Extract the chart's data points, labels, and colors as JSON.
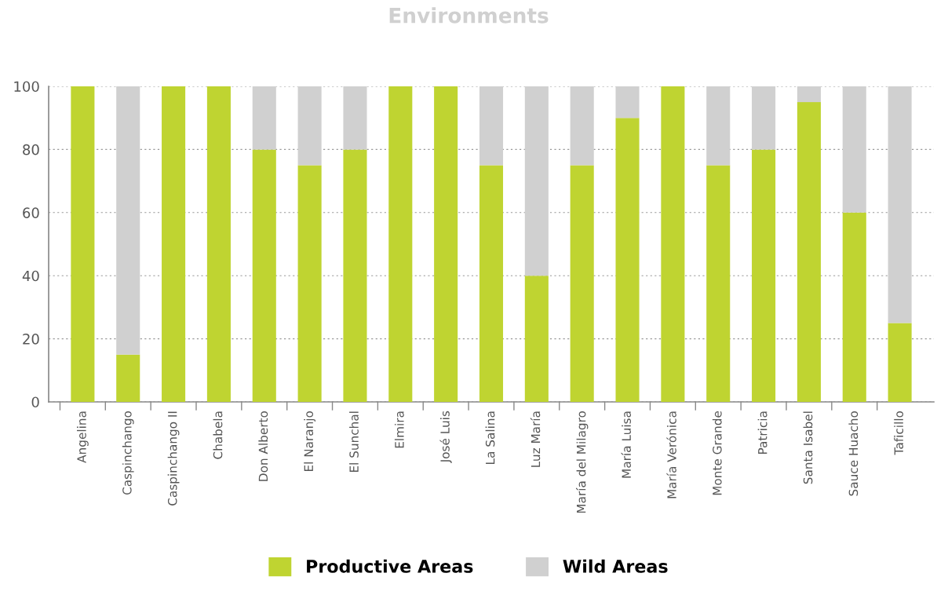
{
  "chart_data": {
    "type": "bar",
    "title": "Environments",
    "stacked": true,
    "categories": [
      "Angelina",
      "Caspinchango",
      "Caspinchango II",
      "Chabela",
      "Don Alberto",
      "El Naranjo",
      "El Sunchal",
      "Elmira",
      "José Luis",
      "La Salina",
      "Luz María",
      "María del Milagro",
      "María Luisa",
      "María Verónica",
      "Monte Grande",
      "Patricia",
      "Santa Isabel",
      "Sauce Huacho",
      "Taficillo"
    ],
    "series": [
      {
        "name": "Productive Areas",
        "color": "#bfd431",
        "values": [
          100,
          15,
          100,
          100,
          80,
          75,
          80,
          100,
          100,
          75,
          40,
          75,
          90,
          100,
          75,
          80,
          95,
          60,
          25
        ]
      },
      {
        "name": "Wild Areas",
        "color": "#d0d0d0",
        "values": [
          0,
          85,
          0,
          0,
          20,
          25,
          20,
          0,
          0,
          25,
          60,
          25,
          10,
          0,
          25,
          20,
          5,
          40,
          75
        ]
      }
    ],
    "ylim": [
      0,
      100
    ],
    "yticks": [
      0,
      20,
      40,
      60,
      80,
      100
    ],
    "grid": "y",
    "legend": "bottom"
  }
}
